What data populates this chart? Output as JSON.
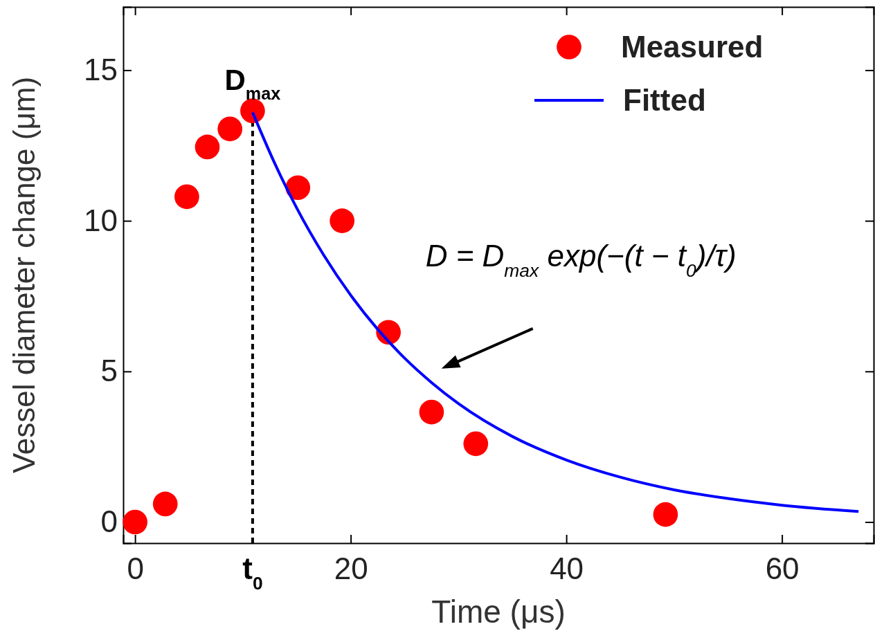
{
  "chart_data": {
    "type": "scatter",
    "xlabel": "Time (μs)",
    "ylabel": "Vessel diameter change (μm)",
    "xlim": [
      -1.1,
      68.5
    ],
    "ylim": [
      -0.7,
      17.1
    ],
    "xticks": [
      0,
      20,
      40,
      60
    ],
    "yticks": [
      0,
      5,
      10,
      15
    ],
    "legend": "top right",
    "grid": false,
    "series": [
      {
        "name": "Measured",
        "marker": "circle",
        "color": "#ff0000",
        "x": [
          0,
          2.8,
          4.8,
          6.7,
          8.8,
          10.9,
          15.1,
          19.2,
          23.5,
          27.5,
          31.6,
          49.2
        ],
        "values": [
          0,
          0.6,
          10.8,
          12.45,
          13.05,
          13.65,
          11.1,
          10,
          6.3,
          3.65,
          2.6,
          0.25
        ]
      },
      {
        "name": "Fitted",
        "type": "line",
        "marker": "none",
        "line_style": "solid",
        "color": "#0000ff",
        "x": [
          10.9,
          13,
          15,
          17.5,
          20,
          22.5,
          25,
          27.5,
          30,
          35,
          40,
          45,
          50,
          55,
          60,
          67.1
        ],
        "values": [
          13.6,
          11.87,
          10.42,
          8.86,
          7.53,
          6.4,
          5.44,
          4.63,
          3.93,
          2.84,
          2.06,
          1.49,
          1.07,
          0.78,
          0.56,
          0.35
        ]
      }
    ],
    "ref_lines": [
      {
        "axis": "x",
        "value": 10.9,
        "color": "#000000",
        "line_style": "dashed",
        "label": "t$_{0}$"
      }
    ],
    "annotations": [
      {
        "text": "D$_{max}$",
        "x": 10.9,
        "y": 13.65
      },
      "D = D$_{max}$ exp(−(t − t$_{0}$)/τ)"
    ]
  }
}
